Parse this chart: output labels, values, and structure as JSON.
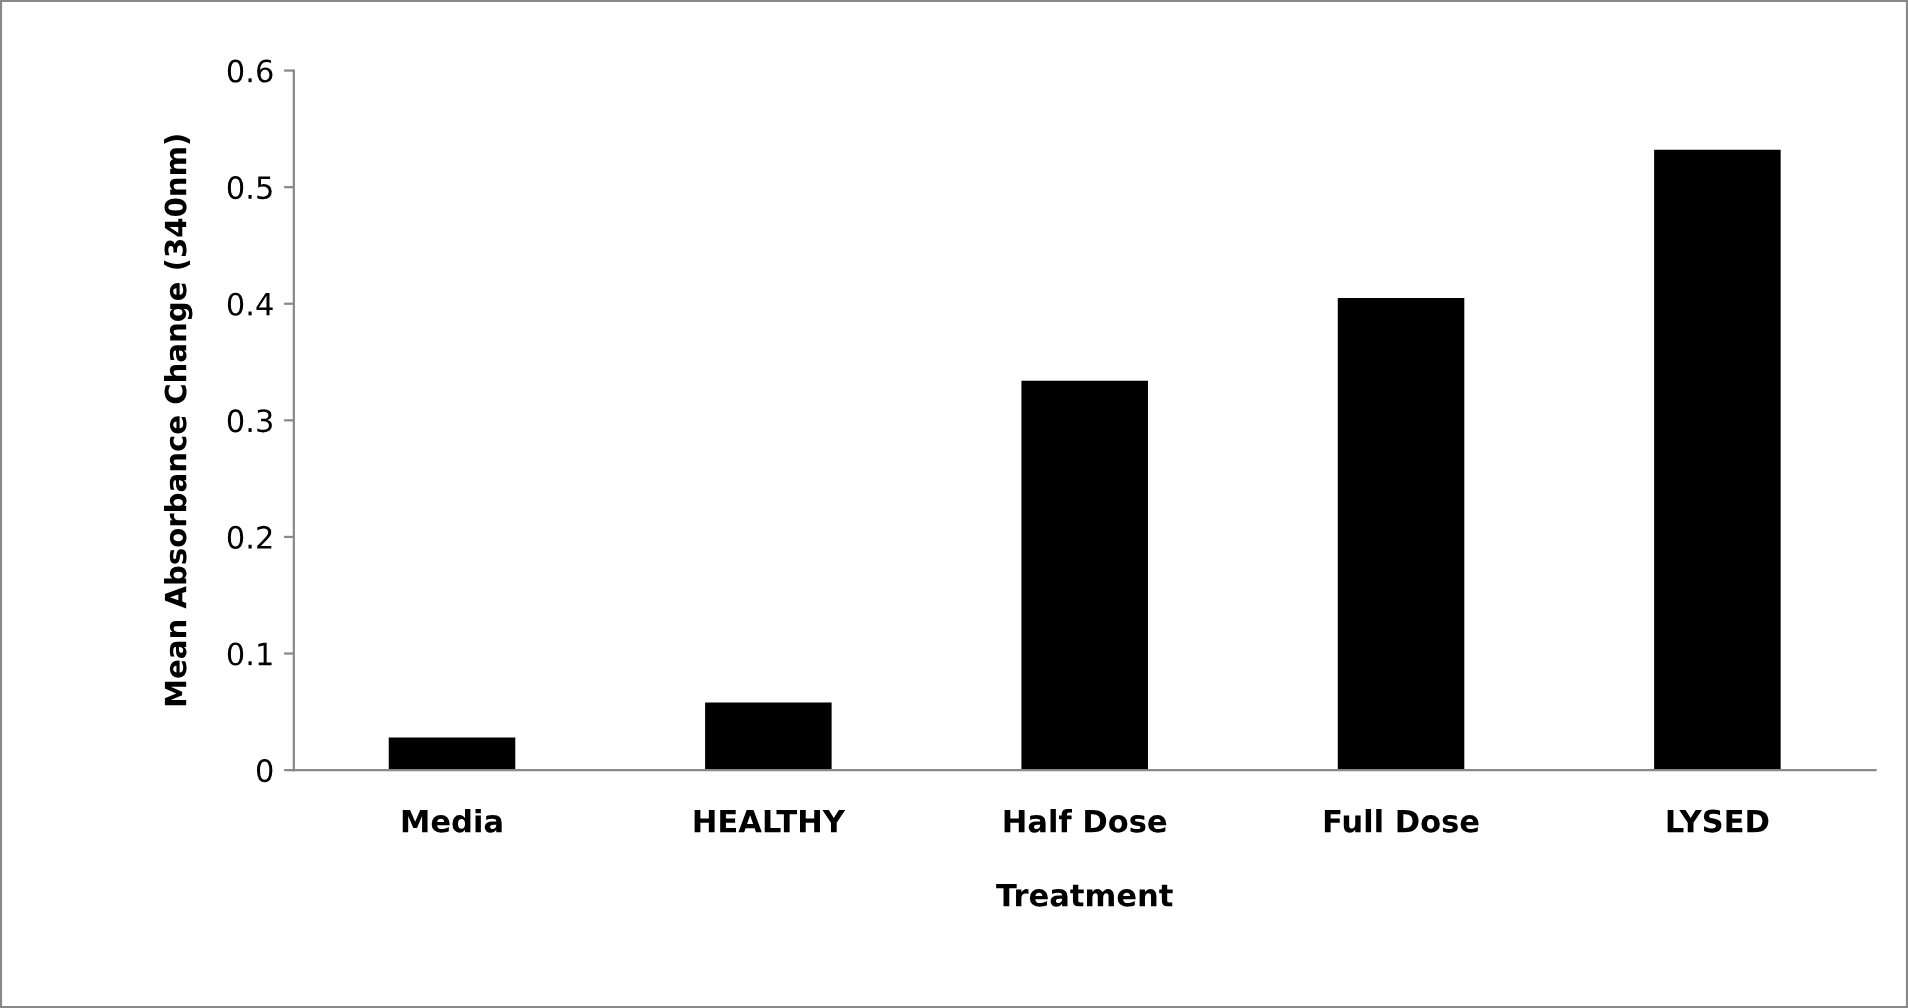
{
  "chart_data": {
    "type": "bar",
    "xlabel": "Treatment",
    "ylabel": "Mean Absorbance Change (340nm)",
    "categories": [
      "Media",
      "HEALTHY",
      "Half Dose",
      "Full Dose",
      "LYSED"
    ],
    "values": [
      0.028,
      0.058,
      0.334,
      0.405,
      0.532
    ],
    "color": "#000000",
    "ylim": [
      0,
      0.6
    ],
    "yticks": [
      {
        "value": 0,
        "label": "0"
      },
      0.1,
      0.2,
      0.3,
      0.4,
      0.5,
      0.6
    ],
    "grid": false,
    "legend": false
  }
}
